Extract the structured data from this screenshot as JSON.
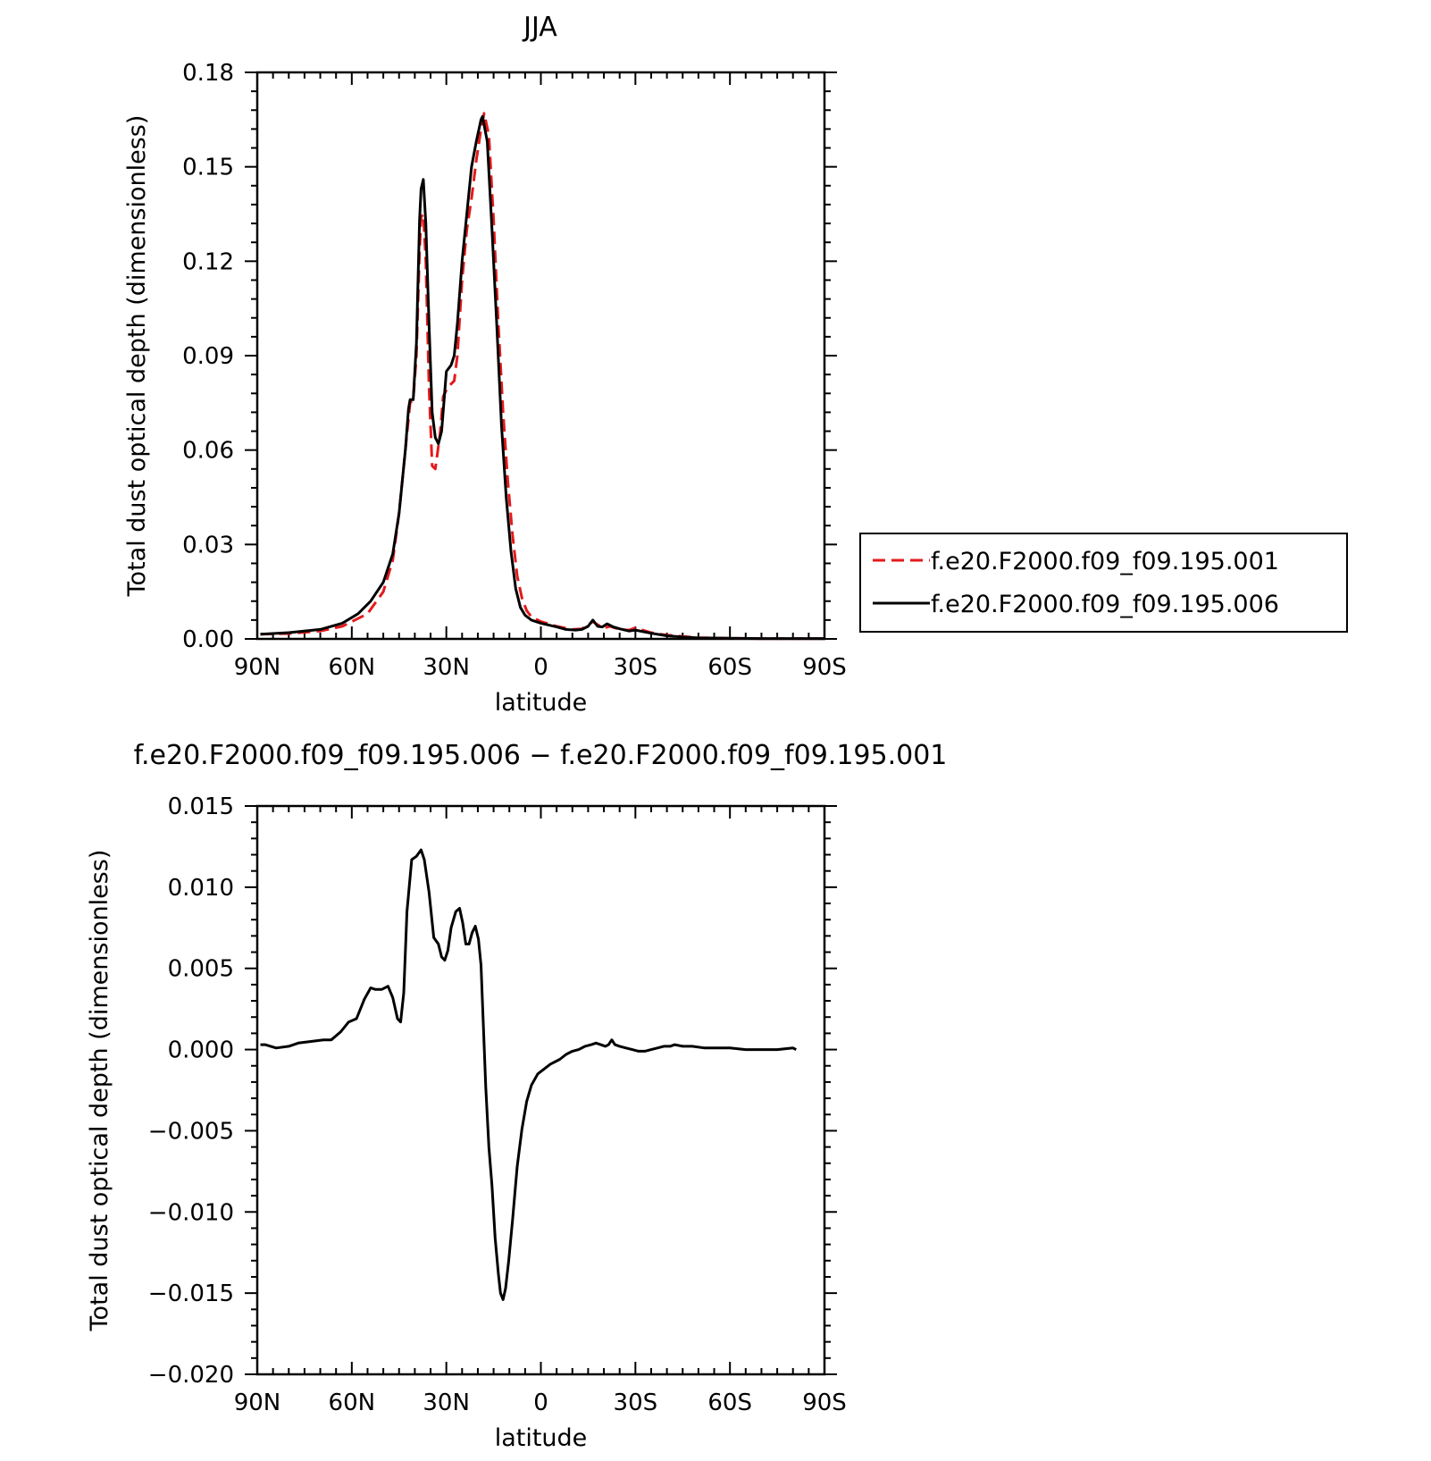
{
  "chart_data": [
    {
      "type": "line",
      "title": "JJA",
      "xlabel": "latitude",
      "ylabel": "Total dust optical depth (dimensionless)",
      "x_ticks": [
        90,
        60,
        30,
        0,
        -30,
        -60,
        -90
      ],
      "x_tick_labels": [
        "90N",
        "60N",
        "30N",
        "0",
        "30S",
        "60S",
        "90S"
      ],
      "xlim": [
        90,
        -90
      ],
      "ylim": [
        0,
        0.18
      ],
      "y_ticks": [
        0,
        0.03,
        0.06,
        0.09,
        0.12,
        0.15,
        0.18
      ],
      "y_tick_labels": [
        "0.00",
        "0.03",
        "0.06",
        "0.09",
        "0.12",
        "0.15",
        "0.18"
      ],
      "grid": false,
      "legend_position": "right-outside",
      "colors": {
        "series_001": "#e41a1c",
        "series_006": "#000000"
      },
      "series": [
        {
          "name": "f.e20.F2000.f09_f09.195.001",
          "style": "dashed",
          "color": "#e41a1c",
          "points": [
            [
              89,
              0.0015
            ],
            [
              80,
              0.0017
            ],
            [
              70,
              0.0025
            ],
            [
              63,
              0.004
            ],
            [
              55,
              0.008
            ],
            [
              50,
              0.015
            ],
            [
              47,
              0.025
            ],
            [
              45,
              0.04
            ],
            [
              43,
              0.06
            ],
            [
              41.5,
              0.075
            ],
            [
              40.5,
              0.076
            ],
            [
              39.5,
              0.09
            ],
            [
              38.5,
              0.123
            ],
            [
              38,
              0.134
            ],
            [
              37.3,
              0.135
            ],
            [
              36.5,
              0.12
            ],
            [
              35.5,
              0.08
            ],
            [
              34.5,
              0.055
            ],
            [
              33.5,
              0.054
            ],
            [
              32,
              0.065
            ],
            [
              31,
              0.077
            ],
            [
              29.5,
              0.08
            ],
            [
              27.5,
              0.082
            ],
            [
              26.5,
              0.09
            ],
            [
              25,
              0.114
            ],
            [
              23.5,
              0.13
            ],
            [
              22,
              0.14
            ],
            [
              20.5,
              0.152
            ],
            [
              19,
              0.162
            ],
            [
              18,
              0.167
            ],
            [
              16.5,
              0.16
            ],
            [
              15,
              0.133
            ],
            [
              13.5,
              0.1
            ],
            [
              12,
              0.072
            ],
            [
              10.5,
              0.05
            ],
            [
              9,
              0.033
            ],
            [
              7.5,
              0.02
            ],
            [
              6,
              0.013
            ],
            [
              4.5,
              0.009
            ],
            [
              3,
              0.007
            ],
            [
              0,
              0.0055
            ],
            [
              -5,
              0.004
            ],
            [
              -10,
              0.003
            ],
            [
              -13,
              0.0032
            ],
            [
              -15,
              0.0045
            ],
            [
              -16.5,
              0.0055
            ],
            [
              -18,
              0.0045
            ],
            [
              -20,
              0.0035
            ],
            [
              -22,
              0.004
            ],
            [
              -25,
              0.003
            ],
            [
              -28,
              0.0028
            ],
            [
              -30,
              0.0035
            ],
            [
              -35,
              0.002
            ],
            [
              -40,
              0.0012
            ],
            [
              -45,
              0.0008
            ],
            [
              -50,
              0.0004
            ],
            [
              -60,
              0.0002
            ],
            [
              -70,
              0.0001
            ],
            [
              -80,
              0.0001
            ],
            [
              -90,
              0.0001
            ]
          ]
        },
        {
          "name": "f.e20.F2000.f09_f09.195.006",
          "style": "solid",
          "color": "#000000",
          "points": [
            [
              89,
              0.0015
            ],
            [
              80,
              0.002
            ],
            [
              70,
              0.003
            ],
            [
              63,
              0.005
            ],
            [
              58,
              0.008
            ],
            [
              54,
              0.012
            ],
            [
              50,
              0.018
            ],
            [
              47,
              0.027
            ],
            [
              45,
              0.04
            ],
            [
              43,
              0.06
            ],
            [
              42,
              0.073
            ],
            [
              41.5,
              0.076
            ],
            [
              40.5,
              0.076
            ],
            [
              39.5,
              0.094
            ],
            [
              38.5,
              0.133
            ],
            [
              38,
              0.143
            ],
            [
              37.3,
              0.146
            ],
            [
              36.5,
              0.132
            ],
            [
              35.5,
              0.1
            ],
            [
              34.5,
              0.072
            ],
            [
              33.5,
              0.064
            ],
            [
              32.5,
              0.062
            ],
            [
              31.5,
              0.066
            ],
            [
              30,
              0.085
            ],
            [
              28.5,
              0.087
            ],
            [
              27.5,
              0.09
            ],
            [
              26.5,
              0.1
            ],
            [
              25,
              0.12
            ],
            [
              23.5,
              0.135
            ],
            [
              22,
              0.15
            ],
            [
              20.5,
              0.158
            ],
            [
              19,
              0.165
            ],
            [
              18.5,
              0.166
            ],
            [
              17,
              0.158
            ],
            [
              15.5,
              0.13
            ],
            [
              14,
              0.1
            ],
            [
              12.5,
              0.068
            ],
            [
              11,
              0.045
            ],
            [
              9.5,
              0.028
            ],
            [
              8,
              0.016
            ],
            [
              6.5,
              0.01
            ],
            [
              5,
              0.0075
            ],
            [
              3,
              0.006
            ],
            [
              0,
              0.005
            ],
            [
              -5,
              0.0038
            ],
            [
              -8,
              0.003
            ],
            [
              -11,
              0.0028
            ],
            [
              -13,
              0.003
            ],
            [
              -15,
              0.004
            ],
            [
              -16.5,
              0.006
            ],
            [
              -18,
              0.004
            ],
            [
              -19.5,
              0.0038
            ],
            [
              -21,
              0.0048
            ],
            [
              -23,
              0.0038
            ],
            [
              -25,
              0.0032
            ],
            [
              -28,
              0.0025
            ],
            [
              -30,
              0.0028
            ],
            [
              -35,
              0.0018
            ],
            [
              -40,
              0.001
            ],
            [
              -45,
              0.0006
            ],
            [
              -50,
              0.0003
            ],
            [
              -60,
              0.0002
            ],
            [
              -70,
              0.0001
            ],
            [
              -80,
              0.0001
            ],
            [
              -90,
              0.0001
            ]
          ]
        }
      ]
    },
    {
      "type": "line",
      "title": "f.e20.F2000.f09_f09.195.006 - f.e20.F2000.f09_f09.195.001",
      "xlabel": "latitude",
      "ylabel": "Total dust optical depth (dimensionless)",
      "x_ticks": [
        90,
        60,
        30,
        0,
        -30,
        -60,
        -90
      ],
      "x_tick_labels": [
        "90N",
        "60N",
        "30N",
        "0",
        "30S",
        "60S",
        "90S"
      ],
      "xlim": [
        90,
        -90
      ],
      "ylim": [
        -0.02,
        0.015
      ],
      "y_ticks": [
        -0.02,
        -0.015,
        -0.01,
        -0.005,
        0,
        0.005,
        0.01,
        0.015
      ],
      "y_tick_labels": [
        "-0.020",
        "-0.015",
        "-0.010",
        "-0.005",
        "0.000",
        "0.005",
        "0.010",
        "0.015"
      ],
      "grid": false,
      "series": [
        {
          "style": "solid",
          "color": "#000000",
          "points": [
            [
              89,
              0.0003
            ],
            [
              87.5,
              0.0003
            ],
            [
              84,
              0.0001
            ],
            [
              80,
              0.0002
            ],
            [
              77,
              0.0004
            ],
            [
              73,
              0.0005
            ],
            [
              69,
              0.0006
            ],
            [
              66.5,
              0.0006
            ],
            [
              63.5,
              0.0011
            ],
            [
              61,
              0.0017
            ],
            [
              58.5,
              0.0019
            ],
            [
              56,
              0.0031
            ],
            [
              54,
              0.0038
            ],
            [
              52.5,
              0.0037
            ],
            [
              50.5,
              0.0037
            ],
            [
              48.5,
              0.0039
            ],
            [
              47,
              0.0032
            ],
            [
              45.5,
              0.0019
            ],
            [
              44.5,
              0.0017
            ],
            [
              43.5,
              0.0035
            ],
            [
              42.5,
              0.0085
            ],
            [
              41,
              0.0117
            ],
            [
              39.5,
              0.0119
            ],
            [
              38,
              0.0123
            ],
            [
              37,
              0.0117
            ],
            [
              35.5,
              0.0097
            ],
            [
              34,
              0.0069
            ],
            [
              32.5,
              0.0065
            ],
            [
              31.5,
              0.0057
            ],
            [
              30.5,
              0.0055
            ],
            [
              29.5,
              0.0061
            ],
            [
              28.5,
              0.0075
            ],
            [
              27,
              0.0085
            ],
            [
              25.8,
              0.0087
            ],
            [
              24.8,
              0.0078
            ],
            [
              23.8,
              0.0065
            ],
            [
              22.8,
              0.0065
            ],
            [
              21.8,
              0.0072
            ],
            [
              20.8,
              0.0076
            ],
            [
              19.8,
              0.0068
            ],
            [
              19,
              0.0052
            ],
            [
              18.3,
              0.0018
            ],
            [
              17.5,
              -0.0023
            ],
            [
              16.5,
              -0.006
            ],
            [
              15.5,
              -0.0084
            ],
            [
              14.5,
              -0.0116
            ],
            [
              13.5,
              -0.0138
            ],
            [
              12.8,
              -0.015
            ],
            [
              12,
              -0.0154
            ],
            [
              11.2,
              -0.0147
            ],
            [
              10.2,
              -0.013
            ],
            [
              9,
              -0.0105
            ],
            [
              7.5,
              -0.0072
            ],
            [
              6,
              -0.0049
            ],
            [
              4.5,
              -0.0032
            ],
            [
              3,
              -0.0022
            ],
            [
              1,
              -0.0015
            ],
            [
              -1,
              -0.0012
            ],
            [
              -3,
              -0.0009
            ],
            [
              -6,
              -0.0006
            ],
            [
              -8,
              -0.0003
            ],
            [
              -10,
              -0.0001
            ],
            [
              -12,
              0
            ],
            [
              -14,
              0.0002
            ],
            [
              -16,
              0.0003
            ],
            [
              -17.5,
              0.0004
            ],
            [
              -19,
              0.0003
            ],
            [
              -20.5,
              0.0002
            ],
            [
              -21.5,
              0.0003
            ],
            [
              -22.5,
              0.0006
            ],
            [
              -23.5,
              0.0003
            ],
            [
              -25,
              0.0002
            ],
            [
              -27,
              0.0001
            ],
            [
              -29,
              0
            ],
            [
              -31,
              -0.0001
            ],
            [
              -33,
              -0.0001
            ],
            [
              -35,
              0
            ],
            [
              -37,
              0.0001
            ],
            [
              -39,
              0.0002
            ],
            [
              -41,
              0.0002
            ],
            [
              -42.5,
              0.0003
            ],
            [
              -45,
              0.0002
            ],
            [
              -48,
              0.0002
            ],
            [
              -52,
              0.0001
            ],
            [
              -55,
              0.0001
            ],
            [
              -60,
              0.0001
            ],
            [
              -65,
              0
            ],
            [
              -70,
              0
            ],
            [
              -75,
              0
            ],
            [
              -80,
              0.0001
            ],
            [
              -81,
              0
            ]
          ]
        }
      ]
    }
  ]
}
